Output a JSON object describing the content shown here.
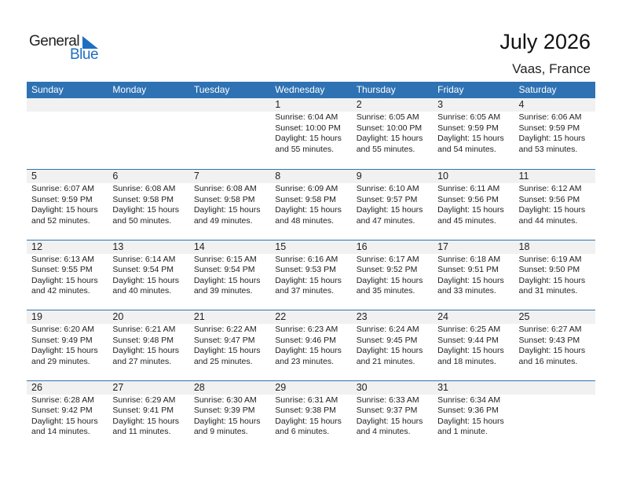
{
  "logo": {
    "word1": "General",
    "word2": "Blue"
  },
  "title": "July 2026",
  "location": "Vaas, France",
  "weekdays": [
    "Sunday",
    "Monday",
    "Tuesday",
    "Wednesday",
    "Thursday",
    "Friday",
    "Saturday"
  ],
  "colors": {
    "header": "#2e72b3",
    "band": "#f1f1f1",
    "logo_blue": "#1f6fc0"
  },
  "weeks": [
    [
      null,
      null,
      null,
      {
        "day": "1",
        "sunrise": "Sunrise: 6:04 AM",
        "sunset": "Sunset: 10:00 PM",
        "daylight": "Daylight: 15 hours",
        "minutes": "and 55 minutes."
      },
      {
        "day": "2",
        "sunrise": "Sunrise: 6:05 AM",
        "sunset": "Sunset: 10:00 PM",
        "daylight": "Daylight: 15 hours",
        "minutes": "and 55 minutes."
      },
      {
        "day": "3",
        "sunrise": "Sunrise: 6:05 AM",
        "sunset": "Sunset: 9:59 PM",
        "daylight": "Daylight: 15 hours",
        "minutes": "and 54 minutes."
      },
      {
        "day": "4",
        "sunrise": "Sunrise: 6:06 AM",
        "sunset": "Sunset: 9:59 PM",
        "daylight": "Daylight: 15 hours",
        "minutes": "and 53 minutes."
      }
    ],
    [
      {
        "day": "5",
        "sunrise": "Sunrise: 6:07 AM",
        "sunset": "Sunset: 9:59 PM",
        "daylight": "Daylight: 15 hours",
        "minutes": "and 52 minutes."
      },
      {
        "day": "6",
        "sunrise": "Sunrise: 6:08 AM",
        "sunset": "Sunset: 9:58 PM",
        "daylight": "Daylight: 15 hours",
        "minutes": "and 50 minutes."
      },
      {
        "day": "7",
        "sunrise": "Sunrise: 6:08 AM",
        "sunset": "Sunset: 9:58 PM",
        "daylight": "Daylight: 15 hours",
        "minutes": "and 49 minutes."
      },
      {
        "day": "8",
        "sunrise": "Sunrise: 6:09 AM",
        "sunset": "Sunset: 9:58 PM",
        "daylight": "Daylight: 15 hours",
        "minutes": "and 48 minutes."
      },
      {
        "day": "9",
        "sunrise": "Sunrise: 6:10 AM",
        "sunset": "Sunset: 9:57 PM",
        "daylight": "Daylight: 15 hours",
        "minutes": "and 47 minutes."
      },
      {
        "day": "10",
        "sunrise": "Sunrise: 6:11 AM",
        "sunset": "Sunset: 9:56 PM",
        "daylight": "Daylight: 15 hours",
        "minutes": "and 45 minutes."
      },
      {
        "day": "11",
        "sunrise": "Sunrise: 6:12 AM",
        "sunset": "Sunset: 9:56 PM",
        "daylight": "Daylight: 15 hours",
        "minutes": "and 44 minutes."
      }
    ],
    [
      {
        "day": "12",
        "sunrise": "Sunrise: 6:13 AM",
        "sunset": "Sunset: 9:55 PM",
        "daylight": "Daylight: 15 hours",
        "minutes": "and 42 minutes."
      },
      {
        "day": "13",
        "sunrise": "Sunrise: 6:14 AM",
        "sunset": "Sunset: 9:54 PM",
        "daylight": "Daylight: 15 hours",
        "minutes": "and 40 minutes."
      },
      {
        "day": "14",
        "sunrise": "Sunrise: 6:15 AM",
        "sunset": "Sunset: 9:54 PM",
        "daylight": "Daylight: 15 hours",
        "minutes": "and 39 minutes."
      },
      {
        "day": "15",
        "sunrise": "Sunrise: 6:16 AM",
        "sunset": "Sunset: 9:53 PM",
        "daylight": "Daylight: 15 hours",
        "minutes": "and 37 minutes."
      },
      {
        "day": "16",
        "sunrise": "Sunrise: 6:17 AM",
        "sunset": "Sunset: 9:52 PM",
        "daylight": "Daylight: 15 hours",
        "minutes": "and 35 minutes."
      },
      {
        "day": "17",
        "sunrise": "Sunrise: 6:18 AM",
        "sunset": "Sunset: 9:51 PM",
        "daylight": "Daylight: 15 hours",
        "minutes": "and 33 minutes."
      },
      {
        "day": "18",
        "sunrise": "Sunrise: 6:19 AM",
        "sunset": "Sunset: 9:50 PM",
        "daylight": "Daylight: 15 hours",
        "minutes": "and 31 minutes."
      }
    ],
    [
      {
        "day": "19",
        "sunrise": "Sunrise: 6:20 AM",
        "sunset": "Sunset: 9:49 PM",
        "daylight": "Daylight: 15 hours",
        "minutes": "and 29 minutes."
      },
      {
        "day": "20",
        "sunrise": "Sunrise: 6:21 AM",
        "sunset": "Sunset: 9:48 PM",
        "daylight": "Daylight: 15 hours",
        "minutes": "and 27 minutes."
      },
      {
        "day": "21",
        "sunrise": "Sunrise: 6:22 AM",
        "sunset": "Sunset: 9:47 PM",
        "daylight": "Daylight: 15 hours",
        "minutes": "and 25 minutes."
      },
      {
        "day": "22",
        "sunrise": "Sunrise: 6:23 AM",
        "sunset": "Sunset: 9:46 PM",
        "daylight": "Daylight: 15 hours",
        "minutes": "and 23 minutes."
      },
      {
        "day": "23",
        "sunrise": "Sunrise: 6:24 AM",
        "sunset": "Sunset: 9:45 PM",
        "daylight": "Daylight: 15 hours",
        "minutes": "and 21 minutes."
      },
      {
        "day": "24",
        "sunrise": "Sunrise: 6:25 AM",
        "sunset": "Sunset: 9:44 PM",
        "daylight": "Daylight: 15 hours",
        "minutes": "and 18 minutes."
      },
      {
        "day": "25",
        "sunrise": "Sunrise: 6:27 AM",
        "sunset": "Sunset: 9:43 PM",
        "daylight": "Daylight: 15 hours",
        "minutes": "and 16 minutes."
      }
    ],
    [
      {
        "day": "26",
        "sunrise": "Sunrise: 6:28 AM",
        "sunset": "Sunset: 9:42 PM",
        "daylight": "Daylight: 15 hours",
        "minutes": "and 14 minutes."
      },
      {
        "day": "27",
        "sunrise": "Sunrise: 6:29 AM",
        "sunset": "Sunset: 9:41 PM",
        "daylight": "Daylight: 15 hours",
        "minutes": "and 11 minutes."
      },
      {
        "day": "28",
        "sunrise": "Sunrise: 6:30 AM",
        "sunset": "Sunset: 9:39 PM",
        "daylight": "Daylight: 15 hours",
        "minutes": "and 9 minutes."
      },
      {
        "day": "29",
        "sunrise": "Sunrise: 6:31 AM",
        "sunset": "Sunset: 9:38 PM",
        "daylight": "Daylight: 15 hours",
        "minutes": "and 6 minutes."
      },
      {
        "day": "30",
        "sunrise": "Sunrise: 6:33 AM",
        "sunset": "Sunset: 9:37 PM",
        "daylight": "Daylight: 15 hours",
        "minutes": "and 4 minutes."
      },
      {
        "day": "31",
        "sunrise": "Sunrise: 6:34 AM",
        "sunset": "Sunset: 9:36 PM",
        "daylight": "Daylight: 15 hours",
        "minutes": "and 1 minute."
      },
      null
    ]
  ]
}
